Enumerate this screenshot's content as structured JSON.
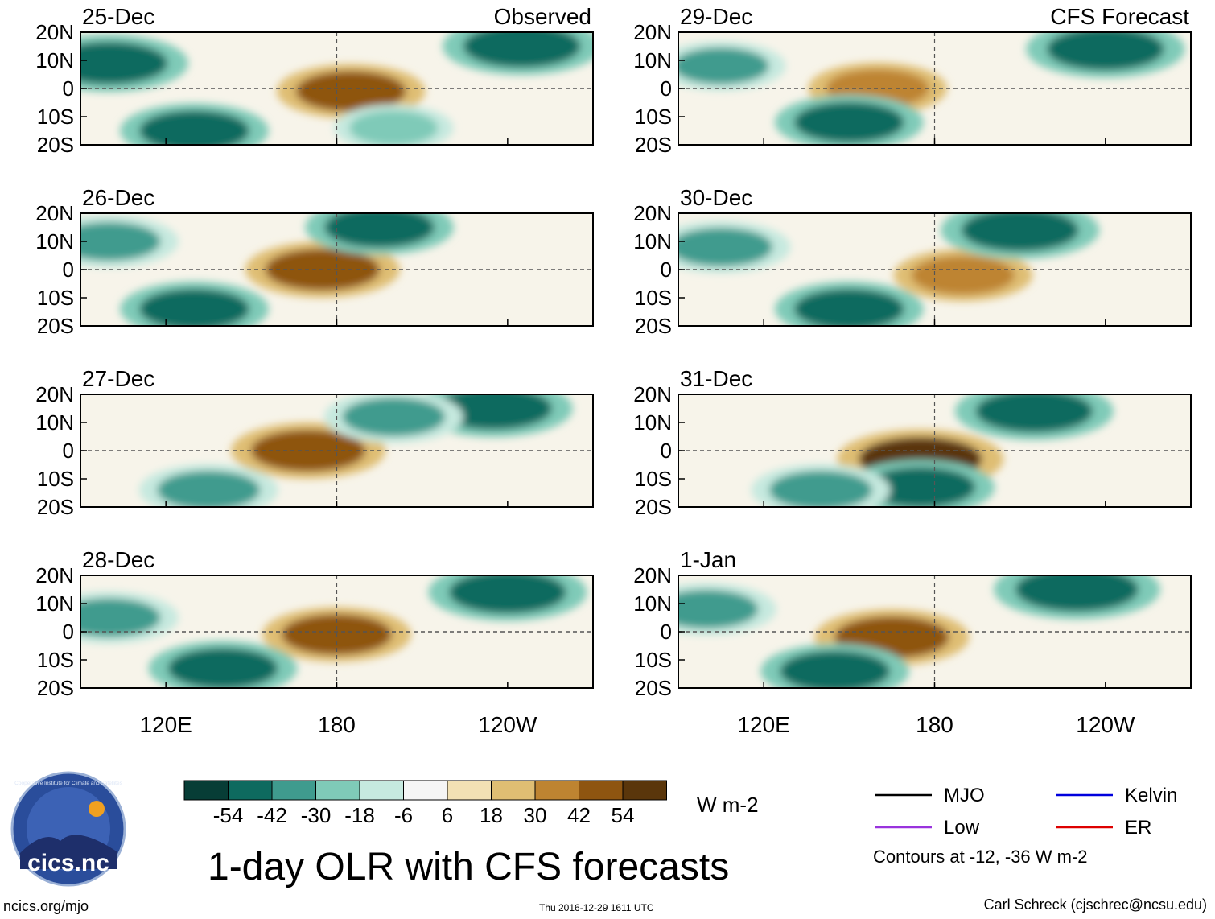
{
  "title": "1-day OLR with CFS forecasts",
  "site": "ncics.org/mjo",
  "timestamp": "Thu 2016-12-29 1611 UTC",
  "author": "Carl Schreck (cjschrec@ncsu.edu)",
  "logo_text": "cics.nc",
  "logo_ring_text": "Cooperative Institute for Climate and Satellites",
  "columns": {
    "left": "Observed",
    "right": "CFS Forecast"
  },
  "lat_ticks": [
    "20N",
    "10N",
    "0",
    "10S",
    "20S"
  ],
  "lon_ticks": [
    "120E",
    "180",
    "120W"
  ],
  "colorbar": {
    "units": "W m-2",
    "labels": [
      "-54",
      "-42",
      "-30",
      "-18",
      "-6",
      "6",
      "18",
      "30",
      "42",
      "54"
    ],
    "colors": [
      "#073d36",
      "#0e6a5f",
      "#3f9b8e",
      "#7fcab8",
      "#c6e9df",
      "#f5f5f5",
      "#f2e1b4",
      "#dfbe73",
      "#be8431",
      "#8e5510",
      "#5a360b"
    ]
  },
  "legend": {
    "items": [
      {
        "label": "MJO",
        "color": "#000000"
      },
      {
        "label": "Kelvin",
        "color": "#0000dd"
      },
      {
        "label": "Low",
        "color": "#9933dd"
      },
      {
        "label": "ER",
        "color": "#dd0000"
      }
    ],
    "note": "Contours at -12, -36 W m-2"
  },
  "chart_data": [
    {
      "type": "heatmap",
      "panel": "observed",
      "date": "25-Dec",
      "title": "Observed",
      "xlabel": "",
      "ylabel": "",
      "xlim": [
        "90E",
        "90W"
      ],
      "ylim": [
        -20,
        20
      ],
      "features": [
        {
          "kind": "olr",
          "lon": 185,
          "lat": -1,
          "value": 45
        },
        {
          "kind": "olr",
          "lon": 100,
          "lat": 9,
          "value": -50
        },
        {
          "kind": "olr",
          "lon": 130,
          "lat": -15,
          "value": -45
        },
        {
          "kind": "olr",
          "lon": 245,
          "lat": 15,
          "value": -50
        },
        {
          "kind": "olr",
          "lon": 200,
          "lat": -14,
          "value": -30
        }
      ]
    },
    {
      "type": "heatmap",
      "panel": "forecast",
      "date": "29-Dec",
      "title": "CFS Forecast",
      "xlabel": "",
      "ylabel": "",
      "xlim": [
        "90E",
        "90W"
      ],
      "ylim": [
        -20,
        20
      ],
      "features": [
        {
          "kind": "olr",
          "lon": 160,
          "lat": 0,
          "value": 40
        },
        {
          "kind": "olr",
          "lon": 240,
          "lat": 14,
          "value": -50
        },
        {
          "kind": "olr",
          "lon": 150,
          "lat": -12,
          "value": -45
        },
        {
          "kind": "olr",
          "lon": 105,
          "lat": 8,
          "value": -35
        }
      ]
    },
    {
      "type": "heatmap",
      "panel": "observed",
      "date": "26-Dec",
      "xlabel": "",
      "ylabel": "",
      "xlim": [
        "90E",
        "90W"
      ],
      "ylim": [
        -20,
        20
      ],
      "features": [
        {
          "kind": "olr",
          "lon": 175,
          "lat": 0,
          "value": 48
        },
        {
          "kind": "olr",
          "lon": 195,
          "lat": 15,
          "value": -45
        },
        {
          "kind": "olr",
          "lon": 130,
          "lat": -14,
          "value": -45
        },
        {
          "kind": "olr",
          "lon": 100,
          "lat": 10,
          "value": -40
        }
      ]
    },
    {
      "type": "heatmap",
      "panel": "forecast",
      "date": "30-Dec",
      "xlabel": "",
      "ylabel": "",
      "xlim": [
        "90E",
        "90W"
      ],
      "ylim": [
        -20,
        20
      ],
      "features": [
        {
          "kind": "olr",
          "lon": 190,
          "lat": -2,
          "value": 40
        },
        {
          "kind": "olr",
          "lon": 210,
          "lat": 14,
          "value": -50
        },
        {
          "kind": "olr",
          "lon": 150,
          "lat": -14,
          "value": -45
        },
        {
          "kind": "olr",
          "lon": 105,
          "lat": 8,
          "value": -40
        }
      ]
    },
    {
      "type": "heatmap",
      "panel": "observed",
      "date": "27-Dec",
      "xlabel": "",
      "ylabel": "",
      "xlim": [
        "90E",
        "90W"
      ],
      "ylim": [
        -20,
        20
      ],
      "features": [
        {
          "kind": "olr",
          "lon": 170,
          "lat": 0,
          "value": 48
        },
        {
          "kind": "olr",
          "lon": 235,
          "lat": 15,
          "value": -50
        },
        {
          "kind": "olr",
          "lon": 200,
          "lat": 12,
          "value": -40
        },
        {
          "kind": "olr",
          "lon": 135,
          "lat": -14,
          "value": -40
        }
      ]
    },
    {
      "type": "heatmap",
      "panel": "forecast",
      "date": "31-Dec",
      "xlabel": "",
      "ylabel": "",
      "xlim": [
        "90E",
        "90W"
      ],
      "ylim": [
        -20,
        20
      ],
      "features": [
        {
          "kind": "olr",
          "lon": 175,
          "lat": -3,
          "value": 54
        },
        {
          "kind": "olr",
          "lon": 215,
          "lat": 14,
          "value": -50
        },
        {
          "kind": "olr",
          "lon": 175,
          "lat": -13,
          "value": -45
        },
        {
          "kind": "olr",
          "lon": 140,
          "lat": -14,
          "value": -40
        }
      ]
    },
    {
      "type": "heatmap",
      "panel": "observed",
      "date": "28-Dec",
      "xlabel": "",
      "ylabel": "",
      "xlim": [
        "90E",
        "90W"
      ],
      "ylim": [
        -20,
        20
      ],
      "features": [
        {
          "kind": "olr",
          "lon": 180,
          "lat": -1,
          "value": 45
        },
        {
          "kind": "olr",
          "lon": 240,
          "lat": 14,
          "value": -50
        },
        {
          "kind": "olr",
          "lon": 140,
          "lat": -13,
          "value": -45
        },
        {
          "kind": "olr",
          "lon": 100,
          "lat": 5,
          "value": -40
        }
      ]
    },
    {
      "type": "heatmap",
      "panel": "forecast",
      "date": "1-Jan",
      "xlabel": "",
      "ylabel": "",
      "xlim": [
        "90E",
        "90W"
      ],
      "ylim": [
        -20,
        20
      ],
      "features": [
        {
          "kind": "olr",
          "lon": 165,
          "lat": -2,
          "value": 48
        },
        {
          "kind": "olr",
          "lon": 230,
          "lat": 15,
          "value": -54
        },
        {
          "kind": "olr",
          "lon": 145,
          "lat": -14,
          "value": -45
        },
        {
          "kind": "olr",
          "lon": 100,
          "lat": 8,
          "value": -40
        }
      ]
    }
  ]
}
